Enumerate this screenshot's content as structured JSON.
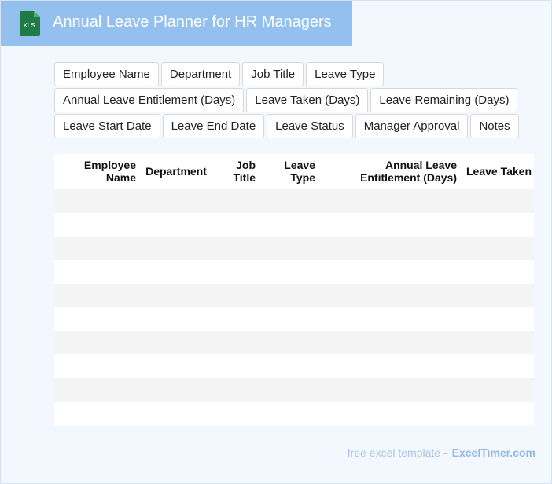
{
  "header": {
    "icon_label": "XLS",
    "title": "Annual Leave Planner for HR Managers"
  },
  "fields": [
    "Employee Name",
    "Department",
    "Job Title",
    "Leave Type",
    "Annual Leave Entitlement (Days)",
    "Leave Taken (Days)",
    "Leave Remaining (Days)",
    "Leave Start Date",
    "Leave End Date",
    "Leave Status",
    "Manager Approval",
    "Notes"
  ],
  "table": {
    "headers": [
      "Employee Name",
      "Department",
      "Job Title",
      "Leave Type",
      "Annual Leave Entitlement (Days)",
      "Leave Taken (Days)"
    ]
  },
  "footer": {
    "text": "free excel template -",
    "link": "ExcelTimer.com"
  }
}
